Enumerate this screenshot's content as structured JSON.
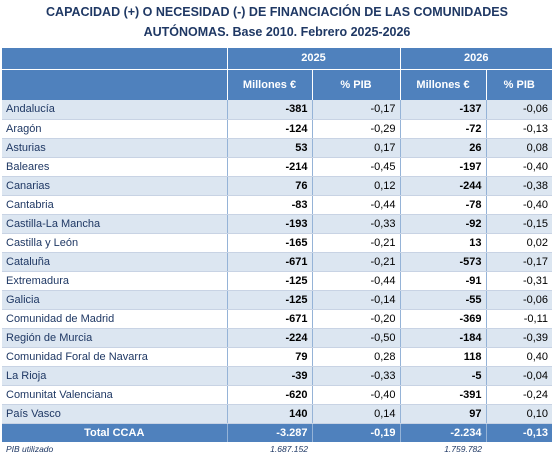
{
  "title": {
    "line1": "CAPACIDAD (+) O NECESIDAD (-) DE FINANCIACIÓN DE LAS COMUNIDADES",
    "line2": "AUTÓNOMAS. Base 2010. Febrero 2025-2026"
  },
  "header": {
    "year1": "2025",
    "year2": "2026",
    "col_millones": "Millones €",
    "col_pib": "% PIB"
  },
  "rows": [
    {
      "name": "Andalucía",
      "m2025": "-381",
      "p2025": "-0,17",
      "m2026": "-137",
      "p2026": "-0,06"
    },
    {
      "name": "Aragón",
      "m2025": "-124",
      "p2025": "-0,29",
      "m2026": "-72",
      "p2026": "-0,13"
    },
    {
      "name": "Asturias",
      "m2025": "53",
      "p2025": "0,17",
      "m2026": "26",
      "p2026": "0,08"
    },
    {
      "name": "Baleares",
      "m2025": "-214",
      "p2025": "-0,45",
      "m2026": "-197",
      "p2026": "-0,40"
    },
    {
      "name": "Canarias",
      "m2025": "76",
      "p2025": "0,12",
      "m2026": "-244",
      "p2026": "-0,38"
    },
    {
      "name": "Cantabria",
      "m2025": "-83",
      "p2025": "-0,44",
      "m2026": "-78",
      "p2026": "-0,40"
    },
    {
      "name": "Castilla-La Mancha",
      "m2025": "-193",
      "p2025": "-0,33",
      "m2026": "-92",
      "p2026": "-0,15"
    },
    {
      "name": "Castilla y León",
      "m2025": "-165",
      "p2025": "-0,21",
      "m2026": "13",
      "p2026": "0,02"
    },
    {
      "name": "Cataluña",
      "m2025": "-671",
      "p2025": "-0,21",
      "m2026": "-573",
      "p2026": "-0,17"
    },
    {
      "name": "Extremadura",
      "m2025": "-125",
      "p2025": "-0,44",
      "m2026": "-91",
      "p2026": "-0,31"
    },
    {
      "name": "Galicia",
      "m2025": "-125",
      "p2025": "-0,14",
      "m2026": "-55",
      "p2026": "-0,06"
    },
    {
      "name": "Comunidad de Madrid",
      "m2025": "-671",
      "p2025": "-0,20",
      "m2026": "-369",
      "p2026": "-0,11"
    },
    {
      "name": "Región de Murcia",
      "m2025": "-224",
      "p2025": "-0,50",
      "m2026": "-184",
      "p2026": "-0,39"
    },
    {
      "name": "Comunidad Foral de Navarra",
      "m2025": "79",
      "p2025": "0,28",
      "m2026": "118",
      "p2026": "0,40"
    },
    {
      "name": "La Rioja",
      "m2025": "-39",
      "p2025": "-0,33",
      "m2026": "-5",
      "p2026": "-0,04"
    },
    {
      "name": "Comunitat Valenciana",
      "m2025": "-620",
      "p2025": "-0,40",
      "m2026": "-391",
      "p2026": "-0,24"
    },
    {
      "name": "País Vasco",
      "m2025": "140",
      "p2025": "0,14",
      "m2026": "97",
      "p2026": "0,10"
    }
  ],
  "total": {
    "name": "Total CCAA",
    "m2025": "-3.287",
    "p2025": "-0,19",
    "m2026": "-2.234",
    "p2026": "-0,13"
  },
  "pib": {
    "label": "PIB utilizado",
    "v2025": "1.687.152",
    "v2026": "1.759.782"
  },
  "colors": {
    "header_bg": "#4f81bd",
    "title": "#1f3864",
    "band": "#dce6f1"
  }
}
